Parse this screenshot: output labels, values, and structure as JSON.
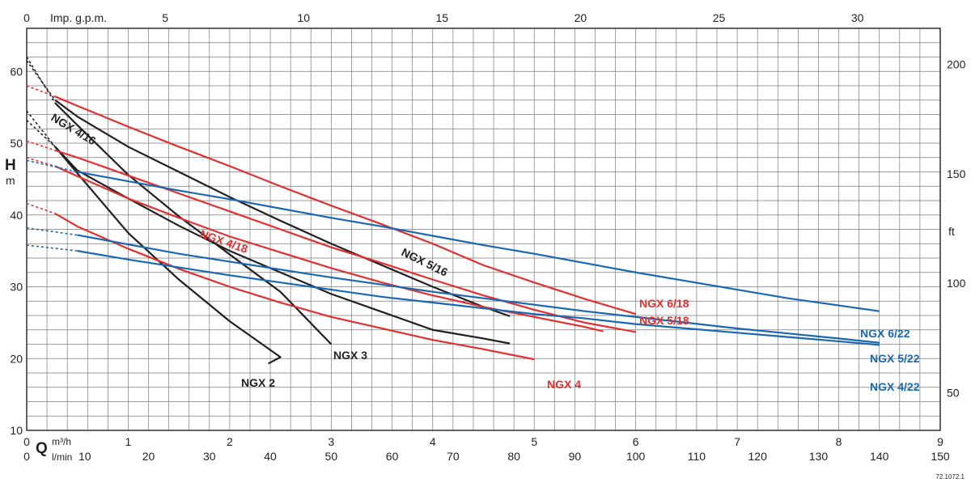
{
  "chart_data": {
    "type": "line",
    "x_unit": "m³/h",
    "x_range": [
      0,
      9
    ],
    "y_range": [
      10,
      66
    ],
    "grid": true,
    "axes": {
      "left": {
        "label": "H",
        "unit": "m",
        "ticks": [
          "10",
          "20",
          "30",
          "40",
          "50",
          "60"
        ],
        "tick_values": [
          10,
          20,
          30,
          40,
          50,
          60
        ]
      },
      "right": {
        "unit": "ft",
        "ticks": [
          "50",
          "100",
          "150",
          "200"
        ],
        "tick_values": [
          50,
          100,
          150,
          200
        ],
        "factor_m_per_unit": 0.3048
      },
      "top": {
        "label": "Imp. g.p.m.",
        "ticks": [
          "0",
          "5",
          "10",
          "15",
          "20",
          "25",
          "30"
        ],
        "tick_values": [
          0,
          5,
          10,
          15,
          20,
          25,
          30
        ],
        "m3h_per_unit": 0.2728
      },
      "bottom_m3h": {
        "label_q": "Q",
        "unit": "m³/h",
        "ticks": [
          "0",
          "1",
          "2",
          "3",
          "4",
          "5",
          "6",
          "7",
          "8",
          "9"
        ],
        "tick_values": [
          0,
          1,
          2,
          3,
          4,
          5,
          6,
          7,
          8,
          9
        ]
      },
      "bottom_lmin": {
        "unit": "l/min",
        "ticks": [
          "0",
          "10",
          "20",
          "30",
          "40",
          "50",
          "60",
          "70",
          "80",
          "90",
          "100",
          "110",
          "120",
          "130",
          "140",
          "150"
        ],
        "tick_values": [
          0,
          10,
          20,
          30,
          40,
          50,
          60,
          70,
          80,
          90,
          100,
          110,
          120,
          130,
          140,
          150
        ],
        "m3h_per_unit": 0.06
      }
    },
    "series": [
      {
        "name": "NGX 2",
        "color": "#231f20",
        "dash_to": [
          0,
          54.5
        ],
        "points": [
          [
            0.28,
            49.5
          ],
          [
            0.5,
            45.8
          ],
          [
            1.0,
            37.5
          ],
          [
            1.5,
            31.0
          ],
          [
            2.0,
            25.2
          ],
          [
            2.5,
            20.2
          ],
          [
            2.38,
            19.3
          ]
        ]
      },
      {
        "name": "NGX 3",
        "color": "#231f20",
        "dash_to": [
          0,
          62.0
        ],
        "points": [
          [
            0.28,
            55.6
          ],
          [
            0.5,
            52.5
          ],
          [
            1.0,
            45.6
          ],
          [
            1.5,
            39.8
          ],
          [
            2.0,
            34.5
          ],
          [
            2.5,
            29.3
          ],
          [
            3.0,
            22.0
          ]
        ]
      },
      {
        "name": "NGX 4/16",
        "color": "#231f20",
        "dash_to": [
          0,
          53.2
        ],
        "points": [
          [
            0.28,
            49.5
          ],
          [
            0.5,
            46.2
          ],
          [
            1.0,
            42.3
          ],
          [
            1.5,
            38.5
          ],
          [
            2.0,
            35.0
          ],
          [
            2.5,
            32.0
          ],
          [
            3.0,
            29.0
          ],
          [
            3.5,
            26.5
          ],
          [
            4.0,
            24.0
          ],
          [
            4.5,
            22.8
          ],
          [
            4.76,
            22.1
          ]
        ]
      },
      {
        "name": "NGX 5/16",
        "color": "#231f20",
        "dash_to": [
          0,
          61.5
        ],
        "points": [
          [
            0.28,
            56.0
          ],
          [
            0.5,
            53.7
          ],
          [
            1.0,
            49.5
          ],
          [
            1.5,
            46.0
          ],
          [
            2.0,
            42.5
          ],
          [
            2.5,
            39.2
          ],
          [
            3.0,
            36.0
          ],
          [
            3.5,
            33.0
          ],
          [
            4.0,
            30.0
          ],
          [
            4.5,
            27.2
          ],
          [
            4.76,
            25.9
          ]
        ]
      },
      {
        "name": "NGX 4",
        "color": "#e03030",
        "dash_to": [
          0,
          41.6
        ],
        "points": [
          [
            0.28,
            40.2
          ],
          [
            0.5,
            38.4
          ],
          [
            1.0,
            35.3
          ],
          [
            1.5,
            32.5
          ],
          [
            2.0,
            30.0
          ],
          [
            2.5,
            27.8
          ],
          [
            3.0,
            25.8
          ],
          [
            3.5,
            24.2
          ],
          [
            4.0,
            22.6
          ],
          [
            4.5,
            21.3
          ],
          [
            5.0,
            19.9
          ]
        ]
      },
      {
        "name": "NGX 4/18",
        "color": "#e03030",
        "dash_to": [
          0,
          48.0
        ],
        "points": [
          [
            0.28,
            46.8
          ],
          [
            0.5,
            45.4
          ],
          [
            1.0,
            42.3
          ],
          [
            1.5,
            39.6
          ],
          [
            2.0,
            37.0
          ],
          [
            2.5,
            34.8
          ],
          [
            3.0,
            32.6
          ],
          [
            3.5,
            30.6
          ],
          [
            4.0,
            28.8
          ],
          [
            4.5,
            27.2
          ],
          [
            5.0,
            25.8
          ],
          [
            5.5,
            24.4
          ],
          [
            5.68,
            23.8
          ]
        ]
      },
      {
        "name": "NGX 5/18",
        "color": "#e03030",
        "dash_to": [
          0,
          50.3
        ],
        "points": [
          [
            0.28,
            49.0
          ],
          [
            0.5,
            48.0
          ],
          [
            1.0,
            45.5
          ],
          [
            1.5,
            43.0
          ],
          [
            2.0,
            40.5
          ],
          [
            2.5,
            38.0
          ],
          [
            3.0,
            35.5
          ],
          [
            3.5,
            33.3
          ],
          [
            4.0,
            31.0
          ],
          [
            4.5,
            28.8
          ],
          [
            5.0,
            26.8
          ],
          [
            5.5,
            25.0
          ],
          [
            6.0,
            23.7
          ]
        ]
      },
      {
        "name": "NGX 6/18",
        "color": "#e03030",
        "dash_to": [
          0,
          58.0
        ],
        "points": [
          [
            0.28,
            56.5
          ],
          [
            0.5,
            55.2
          ],
          [
            1.0,
            52.3
          ],
          [
            1.5,
            49.5
          ],
          [
            2.0,
            46.8
          ],
          [
            2.5,
            44.0
          ],
          [
            3.0,
            41.3
          ],
          [
            3.5,
            38.7
          ],
          [
            4.0,
            36.0
          ],
          [
            4.5,
            33.0
          ],
          [
            5.0,
            30.6
          ],
          [
            5.5,
            28.3
          ],
          [
            6.0,
            26.2
          ]
        ]
      },
      {
        "name": "NGX 4/22",
        "color": "#1b67b0",
        "dash_to": [
          0,
          35.8
        ],
        "points": [
          [
            0.5,
            35.0
          ],
          [
            1.0,
            33.8
          ],
          [
            1.5,
            32.7
          ],
          [
            2.0,
            31.6
          ],
          [
            2.5,
            30.6
          ],
          [
            3.0,
            29.6
          ],
          [
            3.5,
            28.6
          ],
          [
            4.0,
            27.8
          ],
          [
            4.5,
            27.0
          ],
          [
            5.0,
            26.2
          ],
          [
            5.5,
            25.6
          ],
          [
            6.0,
            24.8
          ],
          [
            6.5,
            24.2
          ],
          [
            7.0,
            23.6
          ],
          [
            7.5,
            23.0
          ],
          [
            8.0,
            22.4
          ],
          [
            8.4,
            21.9
          ]
        ]
      },
      {
        "name": "NGX 5/22",
        "color": "#1b67b0",
        "dash_to": [
          0,
          38.2
        ],
        "points": [
          [
            0.5,
            37.2
          ],
          [
            1.0,
            35.9
          ],
          [
            1.5,
            34.6
          ],
          [
            2.0,
            33.5
          ],
          [
            2.5,
            32.4
          ],
          [
            3.0,
            31.3
          ],
          [
            3.5,
            30.3
          ],
          [
            4.0,
            29.3
          ],
          [
            4.5,
            28.4
          ],
          [
            5.0,
            27.5
          ],
          [
            5.5,
            26.6
          ],
          [
            6.0,
            25.8
          ],
          [
            6.5,
            25.0
          ],
          [
            7.0,
            24.2
          ],
          [
            7.5,
            23.5
          ],
          [
            8.0,
            22.8
          ],
          [
            8.4,
            22.2
          ]
        ]
      },
      {
        "name": "NGX 6/22",
        "color": "#1b67b0",
        "dash_to": [
          0,
          47.6
        ],
        "points": [
          [
            0.5,
            46.0
          ],
          [
            1.0,
            44.7
          ],
          [
            1.5,
            43.4
          ],
          [
            2.0,
            42.2
          ],
          [
            2.5,
            40.9
          ],
          [
            3.0,
            39.6
          ],
          [
            3.5,
            38.4
          ],
          [
            4.0,
            37.1
          ],
          [
            4.5,
            35.8
          ],
          [
            5.0,
            34.6
          ],
          [
            5.5,
            33.3
          ],
          [
            6.0,
            32.0
          ],
          [
            6.5,
            30.8
          ],
          [
            7.0,
            29.6
          ],
          [
            7.5,
            28.4
          ],
          [
            8.0,
            27.4
          ],
          [
            8.4,
            26.6
          ]
        ]
      }
    ],
    "annotations": [
      {
        "text": "NGX 2",
        "color": "#231f20"
      },
      {
        "text": "NGX 3",
        "color": "#231f20"
      },
      {
        "text": "NGX 4/16",
        "color": "#231f20"
      },
      {
        "text": "NGX 5/16",
        "color": "#231f20"
      },
      {
        "text": "NGX 4",
        "color": "#e03030"
      },
      {
        "text": "NGX 4/18",
        "color": "#e03030"
      },
      {
        "text": "NGX 5/18",
        "color": "#e03030"
      },
      {
        "text": "NGX 6/18",
        "color": "#e03030"
      },
      {
        "text": "NGX 4/22",
        "color": "#1b67b0"
      },
      {
        "text": "NGX 5/22",
        "color": "#1b67b0"
      },
      {
        "text": "NGX 6/22",
        "color": "#1b67b0"
      }
    ],
    "footnote": "72.1072.1"
  }
}
